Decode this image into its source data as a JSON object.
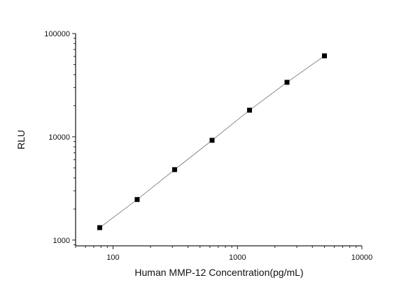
{
  "chart_data": {
    "type": "scatter",
    "title": "",
    "xlabel": "Human MMP-12 Concentration(pg/mL)",
    "ylabel": "RLU",
    "x_scale": "log",
    "y_scale": "log",
    "xlim": [
      50,
      10000
    ],
    "ylim": [
      880,
      100000
    ],
    "x_ticks": [
      "100",
      "1000",
      "10000"
    ],
    "y_ticks": [
      "1000",
      "10000",
      "100000"
    ],
    "grid": false,
    "legend": "none",
    "marker_color": "#000000",
    "line_color": "#808080",
    "series": [
      {
        "x": [
          78.125,
          156.25,
          312.5,
          625,
          1250,
          2500,
          5000
        ],
        "y": [
          1320,
          2470,
          4810,
          9250,
          18100,
          33700,
          60800
        ]
      }
    ]
  }
}
